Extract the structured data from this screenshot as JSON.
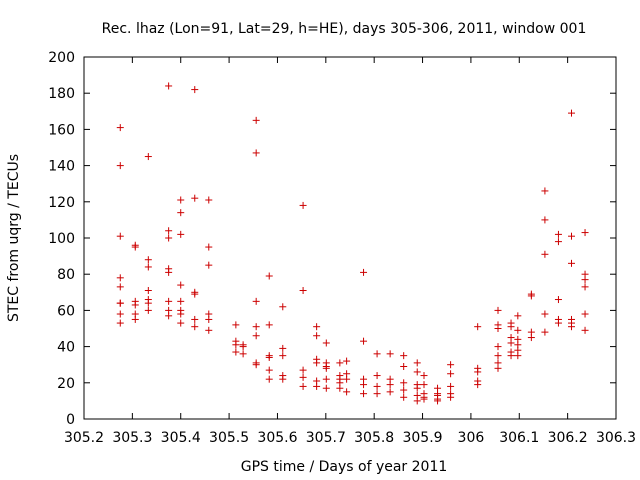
{
  "chart_data": {
    "type": "scatter",
    "title": "Rec. lhaz (Lon=91, Lat=29, h=HE), days 305-306, 2011, window 001",
    "xlabel": "GPS time / Days of year 2011",
    "ylabel": "STEC from uqrg / TECUs",
    "xlim": [
      305.2,
      306.3
    ],
    "ylim": [
      0,
      200
    ],
    "xticks": [
      305.2,
      305.3,
      305.4,
      305.5,
      305.6,
      305.7,
      305.8,
      305.9,
      306.0,
      306.1,
      306.2,
      306.3
    ],
    "xtick_labels": [
      "305.2",
      "305.3",
      "305.4",
      "305.5",
      "305.6",
      "305.7",
      "305.8",
      "305.9",
      "306",
      "306.1",
      "306.2",
      "306.3"
    ],
    "yticks": [
      0,
      20,
      40,
      60,
      80,
      100,
      120,
      140,
      160,
      180,
      200
    ],
    "ytick_labels": [
      "0",
      "20",
      "40",
      "60",
      "80",
      "100",
      "120",
      "140",
      "160",
      "180",
      "200"
    ],
    "grid": false,
    "marker": "plus",
    "marker_color": "#cc0000",
    "series": [
      {
        "x": [
          305.275,
          305.275,
          305.275,
          305.275,
          305.275,
          305.275,
          305.275,
          305.275,
          305.275,
          305.306,
          305.306,
          305.306,
          305.306,
          305.306,
          305.306,
          305.333,
          305.333,
          305.333,
          305.333,
          305.333,
          305.333,
          305.333,
          305.375,
          305.375,
          305.375,
          305.375,
          305.375,
          305.375,
          305.375,
          305.375,
          305.4,
          305.4,
          305.4,
          305.4,
          305.4,
          305.4,
          305.4,
          305.4,
          305.429,
          305.429,
          305.429,
          305.429,
          305.429,
          305.429,
          305.458,
          305.458,
          305.458,
          305.458,
          305.458,
          305.458,
          305.514,
          305.514,
          305.514,
          305.514,
          305.529,
          305.529,
          305.529,
          305.556,
          305.556,
          305.556,
          305.556,
          305.556,
          305.556,
          305.556,
          305.583,
          305.583,
          305.583,
          305.583,
          305.583,
          305.583,
          305.611,
          305.611,
          305.611,
          305.611,
          305.611,
          305.653,
          305.653,
          305.653,
          305.653,
          305.653,
          305.681,
          305.681,
          305.681,
          305.681,
          305.681,
          305.681,
          305.701,
          305.701,
          305.701,
          305.701,
          305.701,
          305.701,
          305.729,
          305.729,
          305.729,
          305.729,
          305.729,
          305.743,
          305.743,
          305.743,
          305.743,
          305.778,
          305.778,
          305.778,
          305.778,
          305.778,
          305.806,
          305.806,
          305.806,
          305.806,
          305.833,
          305.833,
          305.833,
          305.833,
          305.861,
          305.861,
          305.861,
          305.861,
          305.861,
          305.889,
          305.889,
          305.889,
          305.889,
          305.889,
          305.889,
          305.903,
          305.903,
          305.903,
          305.903,
          305.903,
          305.931,
          305.931,
          305.931,
          305.931,
          305.931,
          305.958,
          305.958,
          305.958,
          305.958,
          305.958,
          306.014,
          306.014,
          306.014,
          306.014,
          306.014,
          306.056,
          306.056,
          306.056,
          306.056,
          306.056,
          306.056,
          306.056,
          306.083,
          306.083,
          306.083,
          306.083,
          306.083,
          306.083,
          306.097,
          306.097,
          306.097,
          306.097,
          306.097,
          306.097,
          306.125,
          306.125,
          306.125,
          306.125,
          306.153,
          306.153,
          306.153,
          306.153,
          306.153,
          306.181,
          306.181,
          306.181,
          306.181,
          306.181,
          306.208,
          306.208,
          306.208,
          306.208,
          306.208,
          306.208,
          306.236,
          306.236,
          306.236,
          306.236,
          306.236,
          306.236
        ],
        "y": [
          161,
          140,
          101,
          78,
          73,
          64,
          58,
          53,
          64,
          96,
          95,
          65,
          63,
          58,
          55,
          145,
          88,
          84,
          71,
          66,
          64,
          60,
          184,
          104,
          100,
          83,
          81,
          65,
          60,
          57,
          121,
          114,
          102,
          74,
          65,
          58,
          53,
          60,
          182,
          122,
          70,
          69,
          55,
          51,
          121,
          95,
          85,
          58,
          55,
          49,
          52,
          43,
          41,
          37,
          41,
          40,
          36,
          165,
          147,
          65,
          51,
          46,
          31,
          30,
          79,
          52,
          35,
          34,
          27,
          22,
          62,
          39,
          35,
          24,
          22,
          118,
          71,
          27,
          23,
          18,
          51,
          46,
          33,
          31,
          21,
          18,
          42,
          31,
          29,
          28,
          22,
          17,
          31,
          24,
          22,
          20,
          17,
          32,
          25,
          22,
          15,
          81,
          43,
          22,
          19,
          14,
          36,
          24,
          18,
          14,
          36,
          22,
          19,
          15,
          35,
          29,
          20,
          16,
          12,
          31,
          26,
          19,
          17,
          13,
          10,
          24,
          19,
          14,
          12,
          11,
          17,
          14,
          13,
          11,
          10,
          30,
          25,
          18,
          14,
          12,
          51,
          28,
          26,
          21,
          19,
          60,
          52,
          50,
          40,
          35,
          31,
          28,
          53,
          51,
          45,
          42,
          37,
          35,
          57,
          49,
          44,
          41,
          38,
          35,
          69,
          68,
          48,
          45,
          126,
          110,
          91,
          58,
          48,
          102,
          98,
          66,
          55,
          53,
          169,
          101,
          86,
          55,
          53,
          51,
          103,
          80,
          77,
          73,
          58,
          49
        ]
      }
    ]
  }
}
